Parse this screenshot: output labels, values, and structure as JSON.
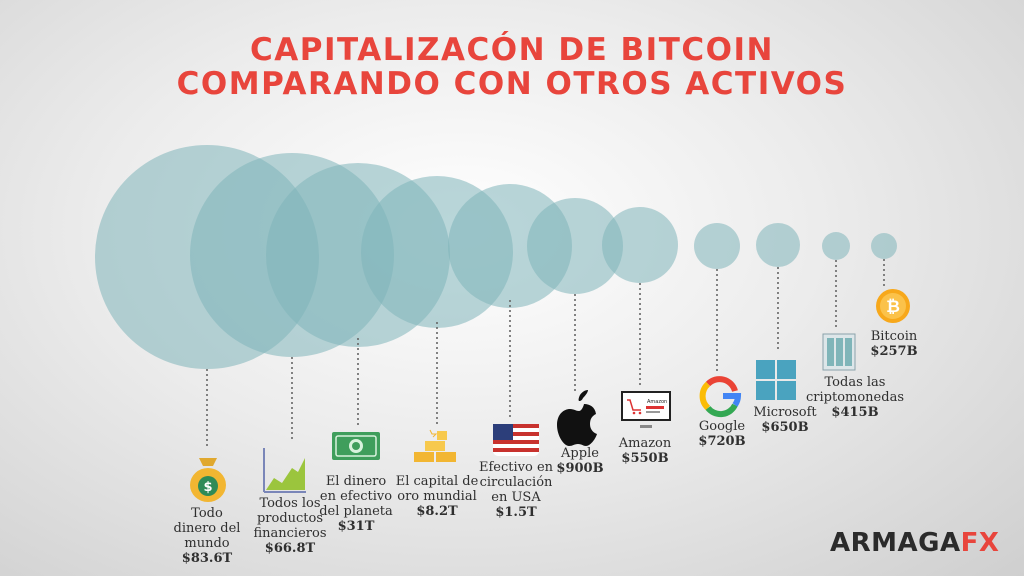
{
  "title": {
    "line1": "CAPITALIZACÓN DE BITCOIN",
    "line2": "COMPARANDO CON OTROS ACTIVOS"
  },
  "colors": {
    "title": "#e8453c",
    "circle": "#7fb5b9",
    "brand_accent": "#e8453c"
  },
  "assets": [
    {
      "label_lines": [
        "Todo",
        "dinero del",
        "mundo"
      ],
      "value": "$83.6T",
      "icon": "money-bag-icon"
    },
    {
      "label_lines": [
        "Todos los",
        "productos",
        "financieros"
      ],
      "value": "$66.8T",
      "icon": "chart-icon"
    },
    {
      "label_lines": [
        "El dinero",
        "en efectivo",
        "del planeta"
      ],
      "value": "$31T",
      "icon": "cash-icon"
    },
    {
      "label_lines": [
        "El capital de",
        "oro mundial"
      ],
      "value": "$8.2T",
      "icon": "gold-bars-icon"
    },
    {
      "label_lines": [
        "Efectivo en",
        "circulación",
        "en USA"
      ],
      "value": "$1.5T",
      "icon": "usa-flag-icon"
    },
    {
      "label_lines": [
        "Apple"
      ],
      "value": "$900B",
      "icon": "apple-logo-icon"
    },
    {
      "label_lines": [
        "Amazon"
      ],
      "value": "$550B",
      "icon": "amazon-laptop-icon"
    },
    {
      "label_lines": [
        "Google"
      ],
      "value": "$720B",
      "icon": "google-logo-icon"
    },
    {
      "label_lines": [
        "Microsoft"
      ],
      "value": "$650B",
      "icon": "windows-logo-icon"
    },
    {
      "label_lines": [
        "Todas las",
        "criptomonedas"
      ],
      "value": "$415B",
      "icon": "crypto-server-icon"
    },
    {
      "label_lines": [
        "Bitcoin"
      ],
      "value": "$257B",
      "icon": "bitcoin-icon"
    }
  ],
  "brand": {
    "part1": "ARMAGA",
    "part2": "FX"
  },
  "icon_text": {
    "dollar": "$",
    "bitcoin": "₿",
    "amazon": "Amazon"
  }
}
